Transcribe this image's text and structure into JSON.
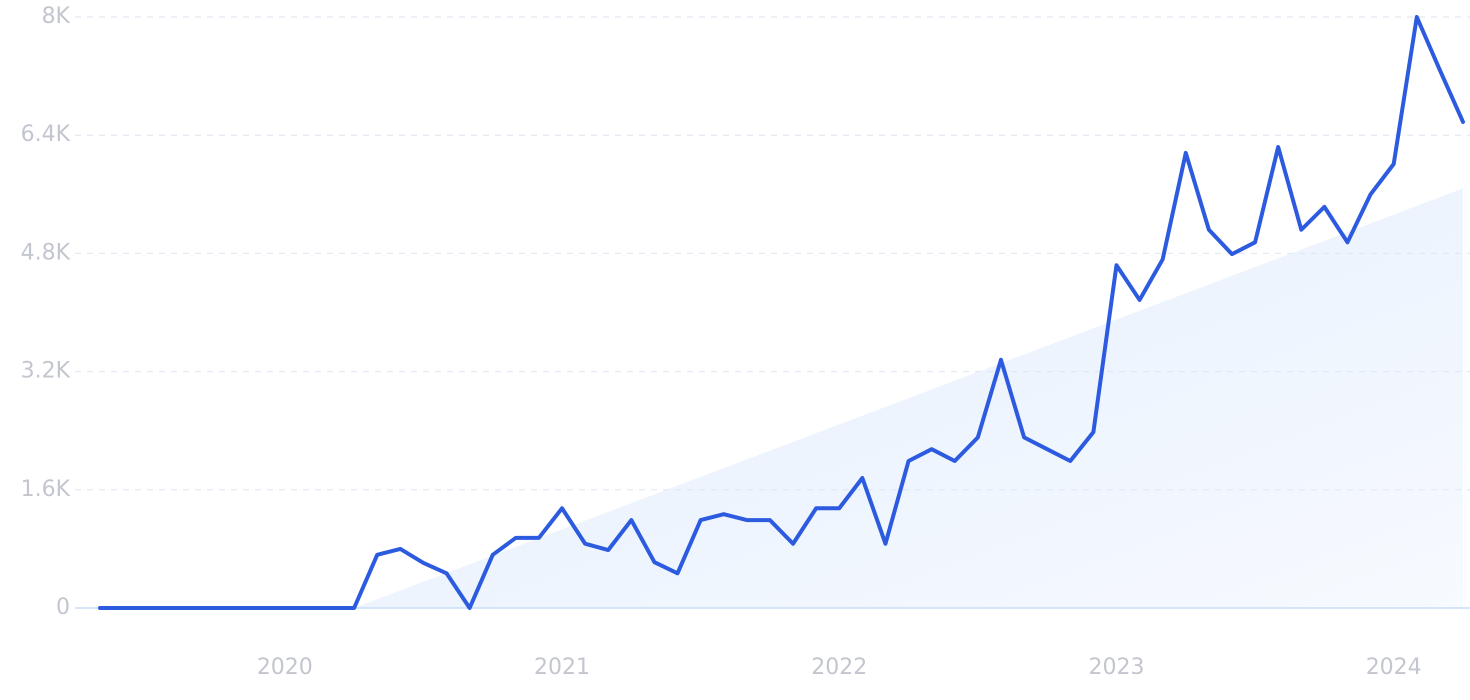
{
  "chart_data": {
    "type": "line",
    "categories": [
      null,
      null,
      null,
      null,
      null,
      null,
      null,
      null,
      "2020",
      null,
      null,
      null,
      null,
      null,
      null,
      null,
      null,
      null,
      null,
      null,
      "2021",
      null,
      null,
      null,
      null,
      null,
      null,
      null,
      null,
      null,
      null,
      null,
      "2022",
      null,
      null,
      null,
      null,
      null,
      null,
      null,
      null,
      null,
      null,
      null,
      "2023",
      null,
      null,
      null,
      null,
      null,
      null,
      null,
      null,
      null,
      null,
      null,
      "2024",
      null,
      null,
      null
    ],
    "series": [
      {
        "color": "#2d5be0",
        "values": [
          0,
          0,
          0,
          0,
          0,
          0,
          0,
          0,
          0,
          0,
          0,
          0,
          720,
          800,
          610,
          470,
          0,
          720,
          950,
          950,
          1350,
          870,
          785,
          1190,
          620,
          470,
          1190,
          1270,
          1190,
          1190,
          870,
          1350,
          1350,
          1760,
          870,
          1990,
          2150,
          1990,
          2310,
          3360,
          2310,
          2150,
          1990,
          2380,
          4640,
          4170,
          4720,
          6160,
          5120,
          4790,
          4950,
          6240,
          5120,
          5430,
          4950,
          5600,
          6010,
          8000,
          7280,
          6580
        ]
      }
    ],
    "trend": {
      "color": "#e6f0fc",
      "values": [
        null,
        null,
        null,
        null,
        null,
        null,
        null,
        null,
        null,
        null,
        null,
        0,
        118,
        237,
        355,
        473,
        592,
        710,
        828,
        947,
        1065,
        1183,
        1302,
        1420,
        1538,
        1657,
        1775,
        1893,
        2012,
        2130,
        2248,
        2367,
        2485,
        2603,
        2722,
        2840,
        2958,
        3077,
        3195,
        3313,
        3432,
        3550,
        3668,
        3787,
        3905,
        4023,
        4142,
        4260,
        4378,
        4497,
        4615,
        4733,
        4852,
        4970,
        5088,
        5207,
        5325,
        5443,
        5562,
        5680
      ]
    },
    "ylim": [
      0,
      8000
    ],
    "yticks": [
      0,
      {
        "value": 1600,
        "label": "1.6K"
      },
      {
        "value": 3200,
        "label": "3.2K"
      },
      {
        "value": 4800,
        "label": "4.8K"
      },
      {
        "value": 6400,
        "label": "6.4K"
      },
      {
        "value": 8000,
        "label": "8K"
      }
    ],
    "grid": true
  }
}
